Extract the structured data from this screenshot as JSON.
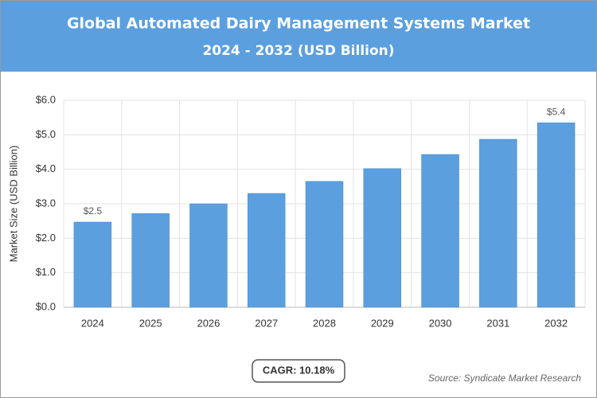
{
  "chart_data": {
    "type": "bar",
    "title": "Global Automated Dairy Management Systems Market",
    "subtitle": "2024 - 2032 (USD Billion)",
    "y_label": "Market Size (USD Billion)",
    "categories": [
      "2024",
      "2025",
      "2026",
      "2027",
      "2028",
      "2029",
      "2030",
      "2031",
      "2032"
    ],
    "values": [
      2.47,
      2.72,
      3.0,
      3.3,
      3.65,
      4.02,
      4.43,
      4.87,
      5.35
    ],
    "value_labels": [
      "$2.5",
      null,
      null,
      null,
      null,
      null,
      null,
      null,
      "$5.4"
    ],
    "color": "#5b9fde",
    "ylim": [
      0,
      6
    ],
    "yticks": [
      {
        "value": 0,
        "label": "$0.0"
      },
      {
        "value": 1,
        "label": "$1.0"
      },
      {
        "value": 2,
        "label": "$2.0"
      },
      {
        "value": 3,
        "label": "$3.0"
      },
      {
        "value": 4,
        "label": "$4.0"
      },
      {
        "value": 5,
        "label": "$5.0"
      },
      {
        "value": 6,
        "label": "$6.0"
      }
    ],
    "grid": true,
    "annotation": "CAGR: 10.18%",
    "source": "Source: Syndicate Market Research"
  }
}
